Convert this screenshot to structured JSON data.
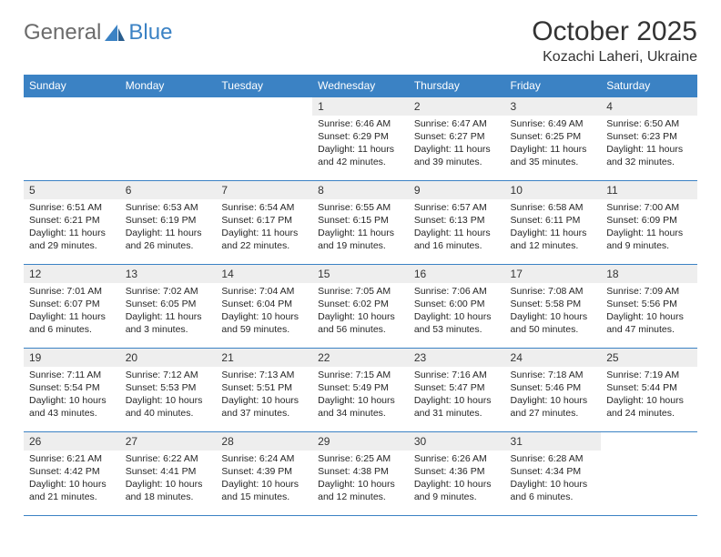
{
  "logo": {
    "text1": "General",
    "text2": "Blue"
  },
  "title": "October 2025",
  "location": "Kozachi Laheri, Ukraine",
  "colors": {
    "header_bg": "#3b82c4",
    "header_text": "#ffffff",
    "daynum_bg": "#eeeeee",
    "border": "#3b82c4",
    "logo_gray": "#6b6b6b",
    "logo_blue": "#3b82c4",
    "page_bg": "#ffffff"
  },
  "weekdays": [
    "Sunday",
    "Monday",
    "Tuesday",
    "Wednesday",
    "Thursday",
    "Friday",
    "Saturday"
  ],
  "weeks": [
    [
      null,
      null,
      null,
      {
        "d": "1",
        "sr": "6:46 AM",
        "ss": "6:29 PM",
        "dl": "11 hours and 42 minutes."
      },
      {
        "d": "2",
        "sr": "6:47 AM",
        "ss": "6:27 PM",
        "dl": "11 hours and 39 minutes."
      },
      {
        "d": "3",
        "sr": "6:49 AM",
        "ss": "6:25 PM",
        "dl": "11 hours and 35 minutes."
      },
      {
        "d": "4",
        "sr": "6:50 AM",
        "ss": "6:23 PM",
        "dl": "11 hours and 32 minutes."
      }
    ],
    [
      {
        "d": "5",
        "sr": "6:51 AM",
        "ss": "6:21 PM",
        "dl": "11 hours and 29 minutes."
      },
      {
        "d": "6",
        "sr": "6:53 AM",
        "ss": "6:19 PM",
        "dl": "11 hours and 26 minutes."
      },
      {
        "d": "7",
        "sr": "6:54 AM",
        "ss": "6:17 PM",
        "dl": "11 hours and 22 minutes."
      },
      {
        "d": "8",
        "sr": "6:55 AM",
        "ss": "6:15 PM",
        "dl": "11 hours and 19 minutes."
      },
      {
        "d": "9",
        "sr": "6:57 AM",
        "ss": "6:13 PM",
        "dl": "11 hours and 16 minutes."
      },
      {
        "d": "10",
        "sr": "6:58 AM",
        "ss": "6:11 PM",
        "dl": "11 hours and 12 minutes."
      },
      {
        "d": "11",
        "sr": "7:00 AM",
        "ss": "6:09 PM",
        "dl": "11 hours and 9 minutes."
      }
    ],
    [
      {
        "d": "12",
        "sr": "7:01 AM",
        "ss": "6:07 PM",
        "dl": "11 hours and 6 minutes."
      },
      {
        "d": "13",
        "sr": "7:02 AM",
        "ss": "6:05 PM",
        "dl": "11 hours and 3 minutes."
      },
      {
        "d": "14",
        "sr": "7:04 AM",
        "ss": "6:04 PM",
        "dl": "10 hours and 59 minutes."
      },
      {
        "d": "15",
        "sr": "7:05 AM",
        "ss": "6:02 PM",
        "dl": "10 hours and 56 minutes."
      },
      {
        "d": "16",
        "sr": "7:06 AM",
        "ss": "6:00 PM",
        "dl": "10 hours and 53 minutes."
      },
      {
        "d": "17",
        "sr": "7:08 AM",
        "ss": "5:58 PM",
        "dl": "10 hours and 50 minutes."
      },
      {
        "d": "18",
        "sr": "7:09 AM",
        "ss": "5:56 PM",
        "dl": "10 hours and 47 minutes."
      }
    ],
    [
      {
        "d": "19",
        "sr": "7:11 AM",
        "ss": "5:54 PM",
        "dl": "10 hours and 43 minutes."
      },
      {
        "d": "20",
        "sr": "7:12 AM",
        "ss": "5:53 PM",
        "dl": "10 hours and 40 minutes."
      },
      {
        "d": "21",
        "sr": "7:13 AM",
        "ss": "5:51 PM",
        "dl": "10 hours and 37 minutes."
      },
      {
        "d": "22",
        "sr": "7:15 AM",
        "ss": "5:49 PM",
        "dl": "10 hours and 34 minutes."
      },
      {
        "d": "23",
        "sr": "7:16 AM",
        "ss": "5:47 PM",
        "dl": "10 hours and 31 minutes."
      },
      {
        "d": "24",
        "sr": "7:18 AM",
        "ss": "5:46 PM",
        "dl": "10 hours and 27 minutes."
      },
      {
        "d": "25",
        "sr": "7:19 AM",
        "ss": "5:44 PM",
        "dl": "10 hours and 24 minutes."
      }
    ],
    [
      {
        "d": "26",
        "sr": "6:21 AM",
        "ss": "4:42 PM",
        "dl": "10 hours and 21 minutes."
      },
      {
        "d": "27",
        "sr": "6:22 AM",
        "ss": "4:41 PM",
        "dl": "10 hours and 18 minutes."
      },
      {
        "d": "28",
        "sr": "6:24 AM",
        "ss": "4:39 PM",
        "dl": "10 hours and 15 minutes."
      },
      {
        "d": "29",
        "sr": "6:25 AM",
        "ss": "4:38 PM",
        "dl": "10 hours and 12 minutes."
      },
      {
        "d": "30",
        "sr": "6:26 AM",
        "ss": "4:36 PM",
        "dl": "10 hours and 9 minutes."
      },
      {
        "d": "31",
        "sr": "6:28 AM",
        "ss": "4:34 PM",
        "dl": "10 hours and 6 minutes."
      },
      null
    ]
  ],
  "labels": {
    "sunrise": "Sunrise:",
    "sunset": "Sunset:",
    "daylight": "Daylight:"
  }
}
